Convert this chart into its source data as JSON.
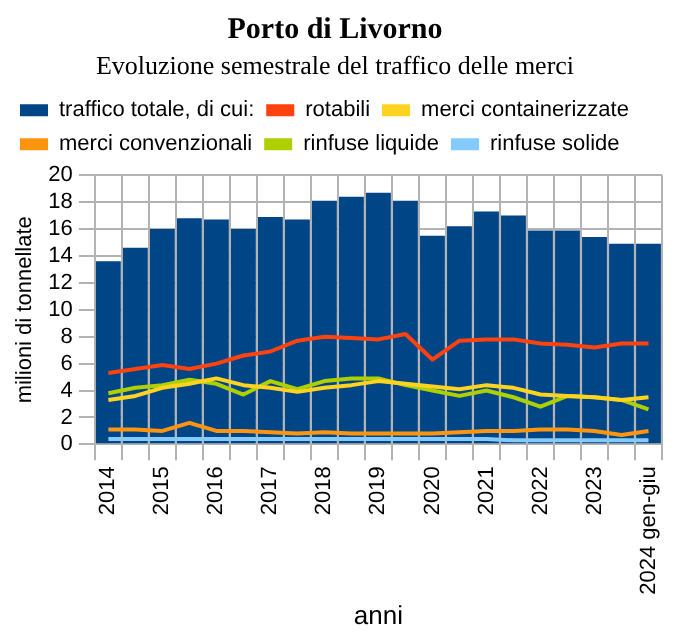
{
  "chart_data": {
    "type": "bar",
    "title": "Porto di Livorno",
    "subtitle": "Evoluzione semestrale del traffico delle merci",
    "xlabel": "anni",
    "ylabel": "milioni di tonnellate",
    "categories": [
      "2014",
      null,
      "2015",
      null,
      "2016",
      null,
      "2017",
      null,
      "2018",
      null,
      "2019",
      null,
      "2020",
      null,
      "2021",
      null,
      "2022",
      null,
      "2023",
      null,
      "2024 gen-giu"
    ],
    "series": [
      {
        "name": "traffico totale, di cui:",
        "type": "bar",
        "color": "#004586",
        "values": [
          13.6,
          14.6,
          16.0,
          16.8,
          16.7,
          16.0,
          16.9,
          16.7,
          18.1,
          18.4,
          18.7,
          18.1,
          15.5,
          16.2,
          17.3,
          17.0,
          15.9,
          15.9,
          15.4,
          14.9,
          14.9
        ]
      },
      {
        "name": "rotabili",
        "type": "line",
        "color": "#ff420e",
        "values": [
          5.3,
          5.6,
          5.9,
          5.6,
          6.0,
          6.6,
          6.9,
          7.7,
          8.0,
          7.9,
          7.8,
          8.2,
          6.3,
          7.7,
          7.8,
          7.8,
          7.5,
          7.4,
          7.2,
          7.5,
          7.5
        ]
      },
      {
        "name": "merci containerizzate",
        "type": "line",
        "color": "#ffd320",
        "values": [
          3.3,
          3.6,
          4.2,
          4.5,
          4.9,
          4.4,
          4.2,
          3.9,
          4.2,
          4.4,
          4.7,
          4.5,
          4.3,
          4.1,
          4.4,
          4.2,
          3.7,
          3.6,
          3.5,
          3.3,
          3.5
        ]
      },
      {
        "name": "merci convenzionali",
        "type": "line",
        "color": "#ff950e",
        "values": [
          1.1,
          1.1,
          1.0,
          1.6,
          1.0,
          1.0,
          0.9,
          0.8,
          0.9,
          0.8,
          0.8,
          0.8,
          0.8,
          0.9,
          1.0,
          1.0,
          1.1,
          1.1,
          1.0,
          0.7,
          1.0
        ]
      },
      {
        "name": "rinfuse liquide",
        "type": "line",
        "color": "#aecf00",
        "values": [
          3.8,
          4.2,
          4.4,
          4.8,
          4.5,
          3.7,
          4.7,
          4.1,
          4.7,
          4.9,
          4.9,
          4.4,
          4.0,
          3.6,
          4.0,
          3.5,
          2.8,
          3.6,
          3.5,
          3.3,
          2.6
        ]
      },
      {
        "name": "rinfuse solide",
        "type": "line",
        "color": "#83caff",
        "values": [
          0.4,
          0.4,
          0.4,
          0.4,
          0.4,
          0.4,
          0.4,
          0.4,
          0.4,
          0.4,
          0.4,
          0.4,
          0.4,
          0.4,
          0.4,
          0.3,
          0.3,
          0.3,
          0.3,
          0.3,
          0.3
        ]
      }
    ],
    "ylim": [
      0,
      20
    ],
    "yticks": [
      0,
      2,
      4,
      6,
      8,
      10,
      12,
      14,
      16,
      18,
      20
    ],
    "grid": true,
    "legend": "top"
  }
}
